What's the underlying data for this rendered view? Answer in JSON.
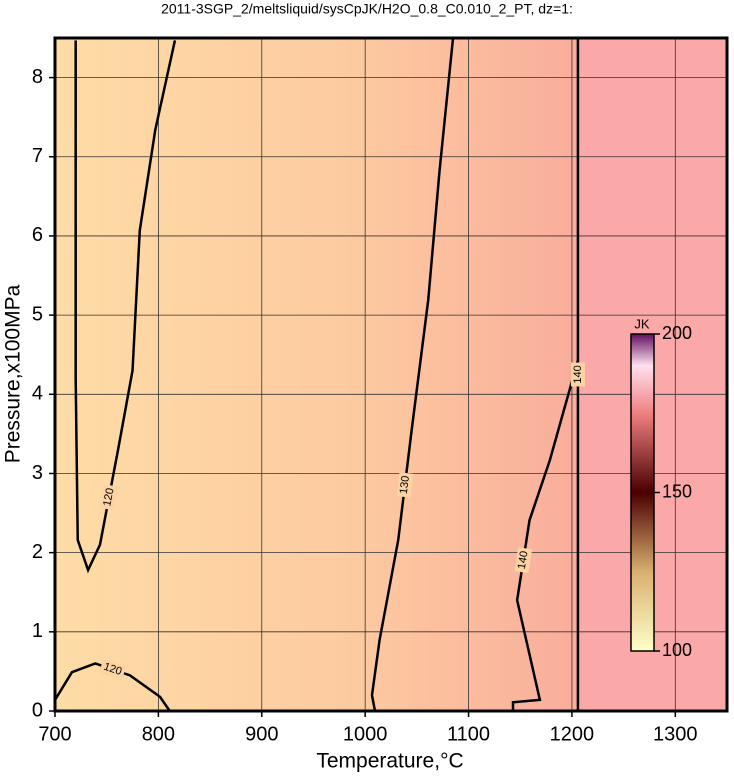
{
  "chart_data": {
    "type": "contour",
    "title": "2011-3SGP_2/meltsliquid/sysCpJK/H2O_0.8_C0.010_2_PT, dz=1:",
    "x_label": "Temperature,°C",
    "y_label": "Pressure,x100MPa",
    "xlim": [
      700,
      1350
    ],
    "ylim": [
      0,
      8.5
    ],
    "xticks": [
      700,
      800,
      900,
      1000,
      1100,
      1200,
      1300
    ],
    "yticks": [
      0,
      1,
      2,
      3,
      4,
      5,
      6,
      7,
      8
    ],
    "grid": true,
    "contours": [
      {
        "level": 120,
        "x": [
          720,
          720,
          722,
          732,
          743.5,
          761,
          775,
          782,
          797,
          816
        ],
        "y": [
          8.47,
          4.2,
          2.16,
          1.78,
          2.1,
          3.3,
          4.3,
          6.07,
          7.34,
          8.47
        ]
      },
      {
        "level": 120,
        "x": [
          700,
          716.4,
          739,
          772.5,
          801.5,
          811
        ],
        "y": [
          0.14,
          0.49,
          0.6,
          0.45,
          0.18,
          0
        ]
      },
      {
        "level": 130,
        "x": [
          1009.5,
          1006.6,
          1014,
          1032,
          1045,
          1061,
          1072,
          1085
        ],
        "y": [
          0,
          0.2,
          0.9,
          2.16,
          3.55,
          5.19,
          6.83,
          8.5
        ]
      },
      {
        "level": 140,
        "x": [
          1143,
          1143,
          1169,
          1147,
          1159,
          1178.7,
          1205.8
        ],
        "y": [
          0,
          0.11,
          0.14,
          1.4,
          2.41,
          3.17,
          4.43
        ]
      },
      {
        "level": 140,
        "x": [
          1205.8,
          1205.8
        ],
        "y": [
          0,
          8.5
        ]
      }
    ],
    "colorbar": {
      "label": "JK",
      "lim": [
        100,
        200
      ],
      "ticks": [
        100,
        150,
        200
      ]
    }
  }
}
